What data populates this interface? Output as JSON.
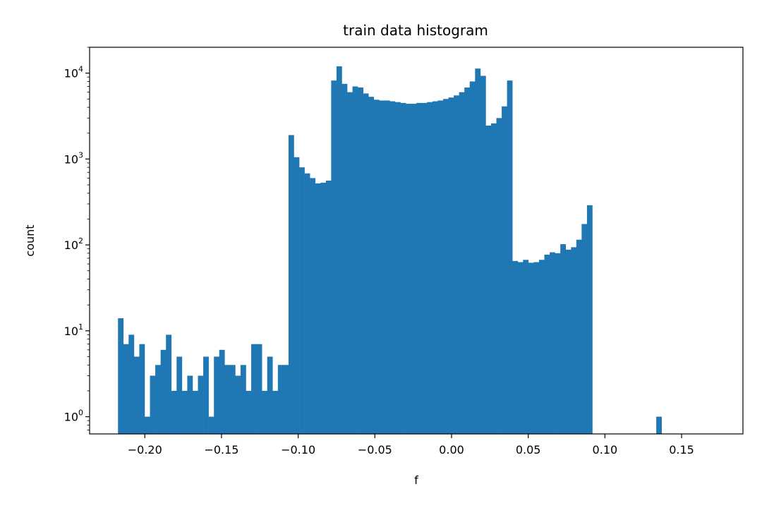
{
  "chart_data": {
    "type": "bar",
    "subtype": "histogram",
    "title": "train data histogram",
    "xlabel": "f",
    "ylabel": "count",
    "yscale": "log",
    "xlim": [
      -0.236,
      0.19
    ],
    "ylim": [
      0.63,
      20000
    ],
    "bin_start": -0.2175,
    "bin_width": 0.003475,
    "bar_color": "#1f77b4",
    "grid": false,
    "legend": "none",
    "x_ticks": [
      -0.2,
      -0.15,
      -0.1,
      -0.05,
      0.0,
      0.05,
      0.1,
      0.15
    ],
    "x_tick_labels": [
      "−0.20",
      "−0.15",
      "−0.10",
      "−0.05",
      "0.00",
      "0.05",
      "0.10",
      "0.15"
    ],
    "y_ticks": [
      1,
      10,
      100,
      1000,
      10000
    ],
    "y_tick_labels": [
      {
        "base": "10",
        "exp": "0"
      },
      {
        "base": "10",
        "exp": "1"
      },
      {
        "base": "10",
        "exp": "2"
      },
      {
        "base": "10",
        "exp": "3"
      },
      {
        "base": "10",
        "exp": "4"
      }
    ],
    "counts": [
      14,
      7,
      9,
      5,
      7,
      1,
      3,
      4,
      6,
      9,
      2,
      5,
      2,
      3,
      2,
      3,
      5,
      1,
      5,
      6,
      4,
      4,
      3,
      4,
      2,
      7,
      7,
      2,
      5,
      2,
      4,
      4,
      1900,
      1050,
      800,
      680,
      600,
      520,
      530,
      560,
      8200,
      12000,
      7500,
      6000,
      7000,
      6800,
      5800,
      5300,
      4900,
      4800,
      4800,
      4700,
      4600,
      4500,
      4400,
      4400,
      4500,
      4500,
      4600,
      4700,
      4800,
      5000,
      5200,
      5500,
      6000,
      6800,
      8000,
      11300,
      9300,
      2450,
      2600,
      3000,
      4100,
      8200,
      65,
      63,
      67,
      62,
      63,
      67,
      77,
      82,
      80,
      102,
      88,
      94,
      115,
      175,
      290,
      0,
      0,
      0,
      0,
      0,
      0,
      0,
      0,
      0,
      0,
      0,
      0,
      1
    ]
  }
}
